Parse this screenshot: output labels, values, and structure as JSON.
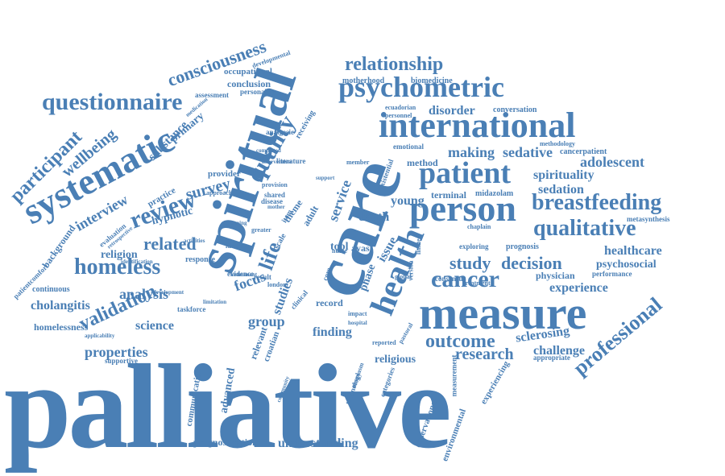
{
  "cloud": {
    "color": "#4a7fb5",
    "words": [
      "palliative",
      "care",
      "spiritual",
      "measure",
      "person",
      "health",
      "systematic",
      "international",
      "patient",
      "psychometric",
      "questionnaire",
      "quality",
      "homeless",
      "cancer",
      "breastfeeding",
      "qualitative",
      "review",
      "professional",
      "relationship",
      "consciousness",
      "participant",
      "wellbeing",
      "related",
      "validation",
      "outcome",
      "study",
      "decision",
      "interview",
      "survey",
      "life",
      "research",
      "cholangitis",
      "analysis",
      "properties",
      "experience",
      "sedation",
      "adolescent",
      "spirituality",
      "sedative",
      "making",
      "healthcare",
      "psychosocial",
      "finding",
      "group",
      "focus",
      "religion",
      "science",
      "homelessness",
      "sclerosing",
      "challenge",
      "understanding",
      "prognostication",
      "substance",
      "primary",
      "conclusion",
      "occupational",
      "personality",
      "motherhood",
      "biomedicine",
      "disorder",
      "conversation",
      "ecuadorian",
      "personnel",
      "emotional",
      "method",
      "terminal",
      "midazolam",
      "physician",
      "performance",
      "metasynthesis",
      "chaplain",
      "prognosis",
      "exploring",
      "cancerpatient",
      "methodology",
      "treatment",
      "consensus",
      "version",
      "death",
      "phase",
      "issue",
      "young",
      "service",
      "tool",
      "ayas",
      "adult",
      "record",
      "religious",
      "observational",
      "environmental",
      "experiencing",
      "measurement",
      "categories",
      "technology",
      "neoplasm",
      "advanced",
      "communication",
      "supportive",
      "hypnotic",
      "practice",
      "background",
      "evaluation",
      "patientcomfort",
      "continuous",
      "taskforce",
      "applicability",
      "retrospective",
      "provider",
      "approach",
      "response",
      "identity",
      "evidence",
      "result",
      "london",
      "clinical",
      "studies",
      "relevant",
      "croatian",
      "scale",
      "item",
      "theme",
      "shared",
      "disease",
      "provision",
      "literature",
      "nurse",
      "social",
      "core",
      "impact",
      "hospital",
      "global",
      "limited",
      "appropriate",
      "reported",
      "pastoral",
      "analgesic",
      "receiving",
      "assessment",
      "developmental",
      "medication",
      "completed",
      "intervention",
      "instrument",
      "member",
      "existential",
      "limitation",
      "activities",
      "identification",
      "development",
      "mother",
      "support",
      "children",
      "planning",
      "greater",
      "community"
    ]
  }
}
